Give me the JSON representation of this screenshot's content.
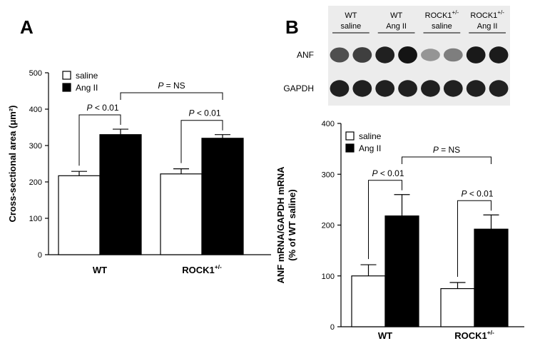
{
  "panels": {
    "a": {
      "letter": "A"
    },
    "b": {
      "letter": "B"
    }
  },
  "blot": {
    "groups": [
      {
        "line1": "WT",
        "line2": "saline"
      },
      {
        "line1": "WT",
        "line2": "Ang II"
      },
      {
        "line1": "ROCK1",
        "sup": "+/-",
        "line2": "saline"
      },
      {
        "line1": "ROCK1",
        "sup": "+/-",
        "line2": "Ang II"
      }
    ],
    "rows": [
      {
        "label": "ANF",
        "intensities": [
          0.75,
          0.82,
          0.95,
          1.0,
          0.45,
          0.55,
          0.98,
          0.97
        ]
      },
      {
        "label": "GAPDH",
        "intensities": [
          0.95,
          0.95,
          0.95,
          0.95,
          0.95,
          0.95,
          0.95,
          0.95
        ]
      }
    ]
  },
  "chart_data": [
    {
      "type": "bar",
      "panel": "A",
      "categories": [
        {
          "name": "WT",
          "sup": ""
        },
        {
          "name": "ROCK1",
          "sup": "+/-"
        }
      ],
      "series": [
        {
          "name": "saline",
          "color": "#ffffff",
          "values": [
            217,
            222
          ],
          "errors": [
            12,
            14
          ]
        },
        {
          "name": "Ang II",
          "color": "#000000",
          "values": [
            330,
            320
          ],
          "errors": [
            15,
            10
          ]
        }
      ],
      "ylabel": "Cross-sectional area (μm²)",
      "ylim": [
        0,
        500
      ],
      "yticks": [
        0,
        100,
        200,
        300,
        400,
        500
      ],
      "legend_position": "top-left",
      "annotations": [
        {
          "text": "P < 0.01",
          "between": "WT saline vs WT Ang II"
        },
        {
          "text": "P < 0.01",
          "between": "ROCK1+/- saline vs ROCK1+/- Ang II"
        },
        {
          "text": "P = NS",
          "between": "WT Ang II vs ROCK1+/- Ang II"
        }
      ]
    },
    {
      "type": "bar",
      "panel": "B",
      "categories": [
        {
          "name": "WT",
          "sup": ""
        },
        {
          "name": "ROCK1",
          "sup": "+/-"
        }
      ],
      "series": [
        {
          "name": "saline",
          "color": "#ffffff",
          "values": [
            100,
            75
          ],
          "errors": [
            22,
            12
          ]
        },
        {
          "name": "Ang II",
          "color": "#000000",
          "values": [
            218,
            192
          ],
          "errors": [
            42,
            28
          ]
        }
      ],
      "ylabel_line1": "ANF mRNA/GAPDH mRNA",
      "ylabel_line2": "(% of WT saline)",
      "ylim": [
        0,
        400
      ],
      "yticks": [
        0,
        100,
        200,
        300,
        400
      ],
      "legend_position": "top-left",
      "annotations": [
        {
          "text": "P < 0.01",
          "between": "WT saline vs WT Ang II"
        },
        {
          "text": "P < 0.01",
          "between": "ROCK1+/- saline vs ROCK1+/- Ang II"
        },
        {
          "text": "P = NS",
          "between": "WT Ang II vs ROCK1+/- Ang II"
        }
      ]
    }
  ]
}
